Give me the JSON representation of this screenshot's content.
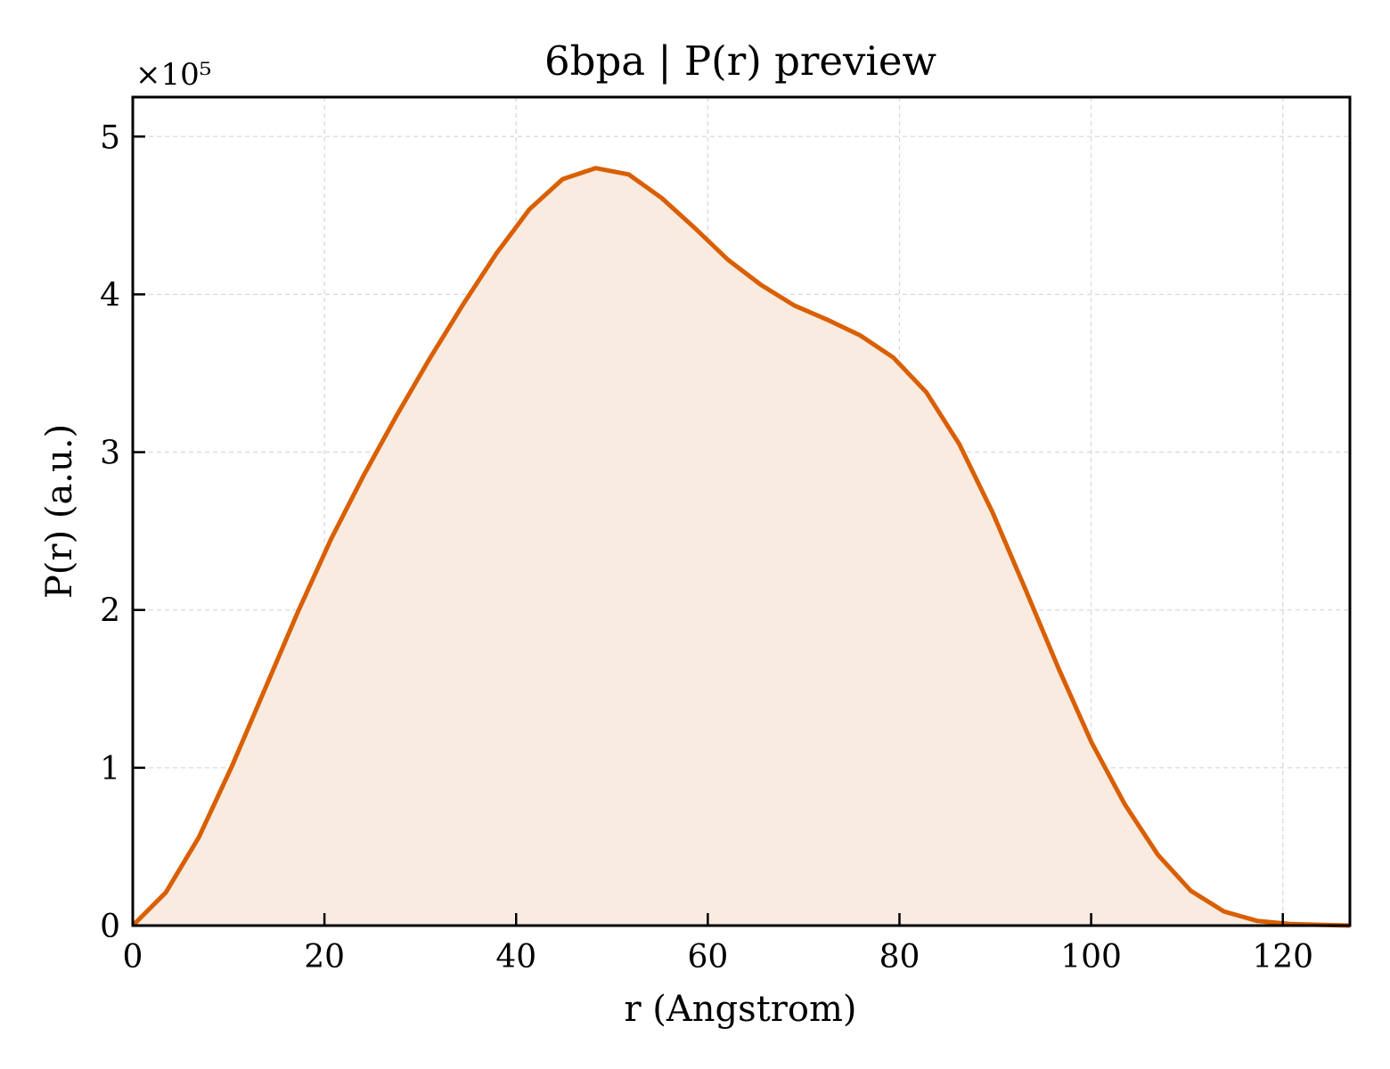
{
  "chart_data": {
    "type": "area",
    "title": "6bpa | P(r) preview",
    "xlabel": "r (Angstrom)",
    "ylabel": "P(r) (a.u.)",
    "y_offset_text": "×10⁵",
    "xlim": [
      0,
      127
    ],
    "ylim": [
      0,
      5.25
    ],
    "xticks": [
      0,
      20,
      40,
      60,
      80,
      100,
      120
    ],
    "xtick_labels": [
      "0",
      "20",
      "40",
      "60",
      "80",
      "100",
      "120"
    ],
    "yticks": [
      0,
      1,
      2,
      3,
      4,
      5
    ],
    "ytick_labels": [
      "0",
      "1",
      "2",
      "3",
      "4",
      "5"
    ],
    "grid": true,
    "line_color": "#d95f02",
    "fill_color": "#f9ebe0",
    "series": [
      {
        "x": [
          0,
          3.45,
          6.9,
          10.35,
          13.8,
          17.25,
          20.7,
          24.15,
          27.6,
          31.05,
          34.5,
          37.95,
          41.4,
          44.85,
          48.3,
          51.75,
          55.2,
          58.65,
          62.1,
          65.55,
          69.0,
          72.45,
          75.9,
          79.35,
          82.8,
          86.25,
          89.7,
          93.15,
          96.6,
          100.05,
          103.5,
          106.95,
          110.4,
          113.85,
          117.3,
          120.75,
          124.2,
          127.0
        ],
        "y": [
          0,
          0.21,
          0.56,
          1.01,
          1.5,
          1.99,
          2.45,
          2.86,
          3.24,
          3.6,
          3.94,
          4.26,
          4.54,
          4.73,
          4.8,
          4.76,
          4.61,
          4.42,
          4.22,
          4.06,
          3.93,
          3.84,
          3.74,
          3.6,
          3.38,
          3.05,
          2.62,
          2.13,
          1.63,
          1.16,
          0.77,
          0.45,
          0.22,
          0.09,
          0.03,
          0.01,
          0.004,
          0
        ]
      }
    ]
  }
}
